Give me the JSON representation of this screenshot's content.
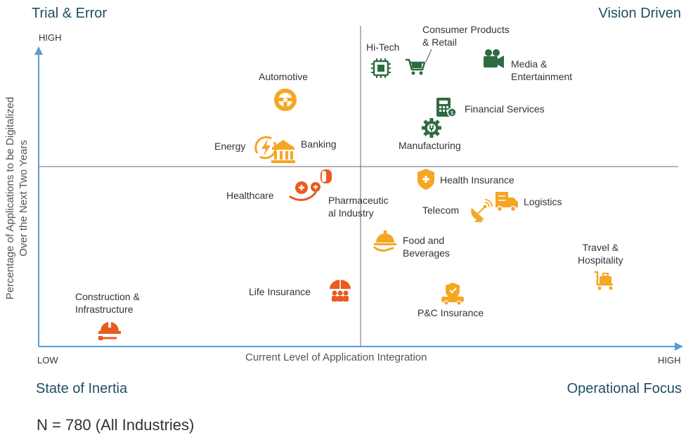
{
  "quadrants": {
    "top_left": "Trial & Error",
    "top_right": "Vision Driven",
    "bottom_left": "State of Inertia",
    "bottom_right": "Operational Focus"
  },
  "axes": {
    "y_title_line1": "Percentage of Applications to be Digitalized",
    "y_title_line2": "Over the Next Two Years",
    "y_high": "HIGH",
    "x_title": "Current Level of Application Integration",
    "x_low": "LOW",
    "x_high": "HIGH"
  },
  "colors": {
    "green": "#2e6b43",
    "amber": "#f5a623",
    "orange": "#e85c1e",
    "axis": "#5b9bd5",
    "title": "#1f4e64"
  },
  "industries": [
    {
      "name_line1": "Hi-Tech",
      "name_line2": "",
      "icon": "chip-icon",
      "color": "green"
    },
    {
      "name_line1": "Consumer Products",
      "name_line2": "& Retail",
      "icon": "cart-icon",
      "color": "green"
    },
    {
      "name_line1": "Media &",
      "name_line2": "Entertainment",
      "icon": "video-camera-icon",
      "color": "green"
    },
    {
      "name_line1": "Financial Services",
      "name_line2": "",
      "icon": "calculator-icon",
      "color": "green"
    },
    {
      "name_line1": "Manufacturing",
      "name_line2": "",
      "icon": "gear-icon",
      "color": "green"
    },
    {
      "name_line1": "Automotive",
      "name_line2": "",
      "icon": "steering-wheel-icon",
      "color": "amber"
    },
    {
      "name_line1": "Energy",
      "name_line2": "",
      "icon": "energy-icon",
      "color": "amber"
    },
    {
      "name_line1": "Banking",
      "name_line2": "",
      "icon": "bank-icon",
      "color": "amber"
    },
    {
      "name_line1": "Healthcare",
      "name_line2": "",
      "icon": "healthcare-hand-icon",
      "color": "orange"
    },
    {
      "name_line1": "Pharmaceutic",
      "name_line2": "al Industry",
      "icon": "pill-icon",
      "color": "orange"
    },
    {
      "name_line1": "Health Insurance",
      "name_line2": "",
      "icon": "shield-cross-icon",
      "color": "amber"
    },
    {
      "name_line1": "Logistics",
      "name_line2": "",
      "icon": "truck-icon",
      "color": "amber"
    },
    {
      "name_line1": "Telecom",
      "name_line2": "",
      "icon": "satellite-dish-icon",
      "color": "amber"
    },
    {
      "name_line1": "Food and",
      "name_line2": "Beverages",
      "icon": "cloche-icon",
      "color": "amber"
    },
    {
      "name_line1": "Travel &",
      "name_line2": "Hospitality",
      "icon": "luggage-icon",
      "color": "amber"
    },
    {
      "name_line1": "Construction &",
      "name_line2": "Infrastructure",
      "icon": "hard-hat-icon",
      "color": "orange"
    },
    {
      "name_line1": "Life Insurance",
      "name_line2": "",
      "icon": "umbrella-family-icon",
      "color": "orange"
    },
    {
      "name_line1": "P&C Insurance",
      "name_line2": "",
      "icon": "car-shield-icon",
      "color": "amber"
    }
  ],
  "note": "N = 780 (All Industries)"
}
